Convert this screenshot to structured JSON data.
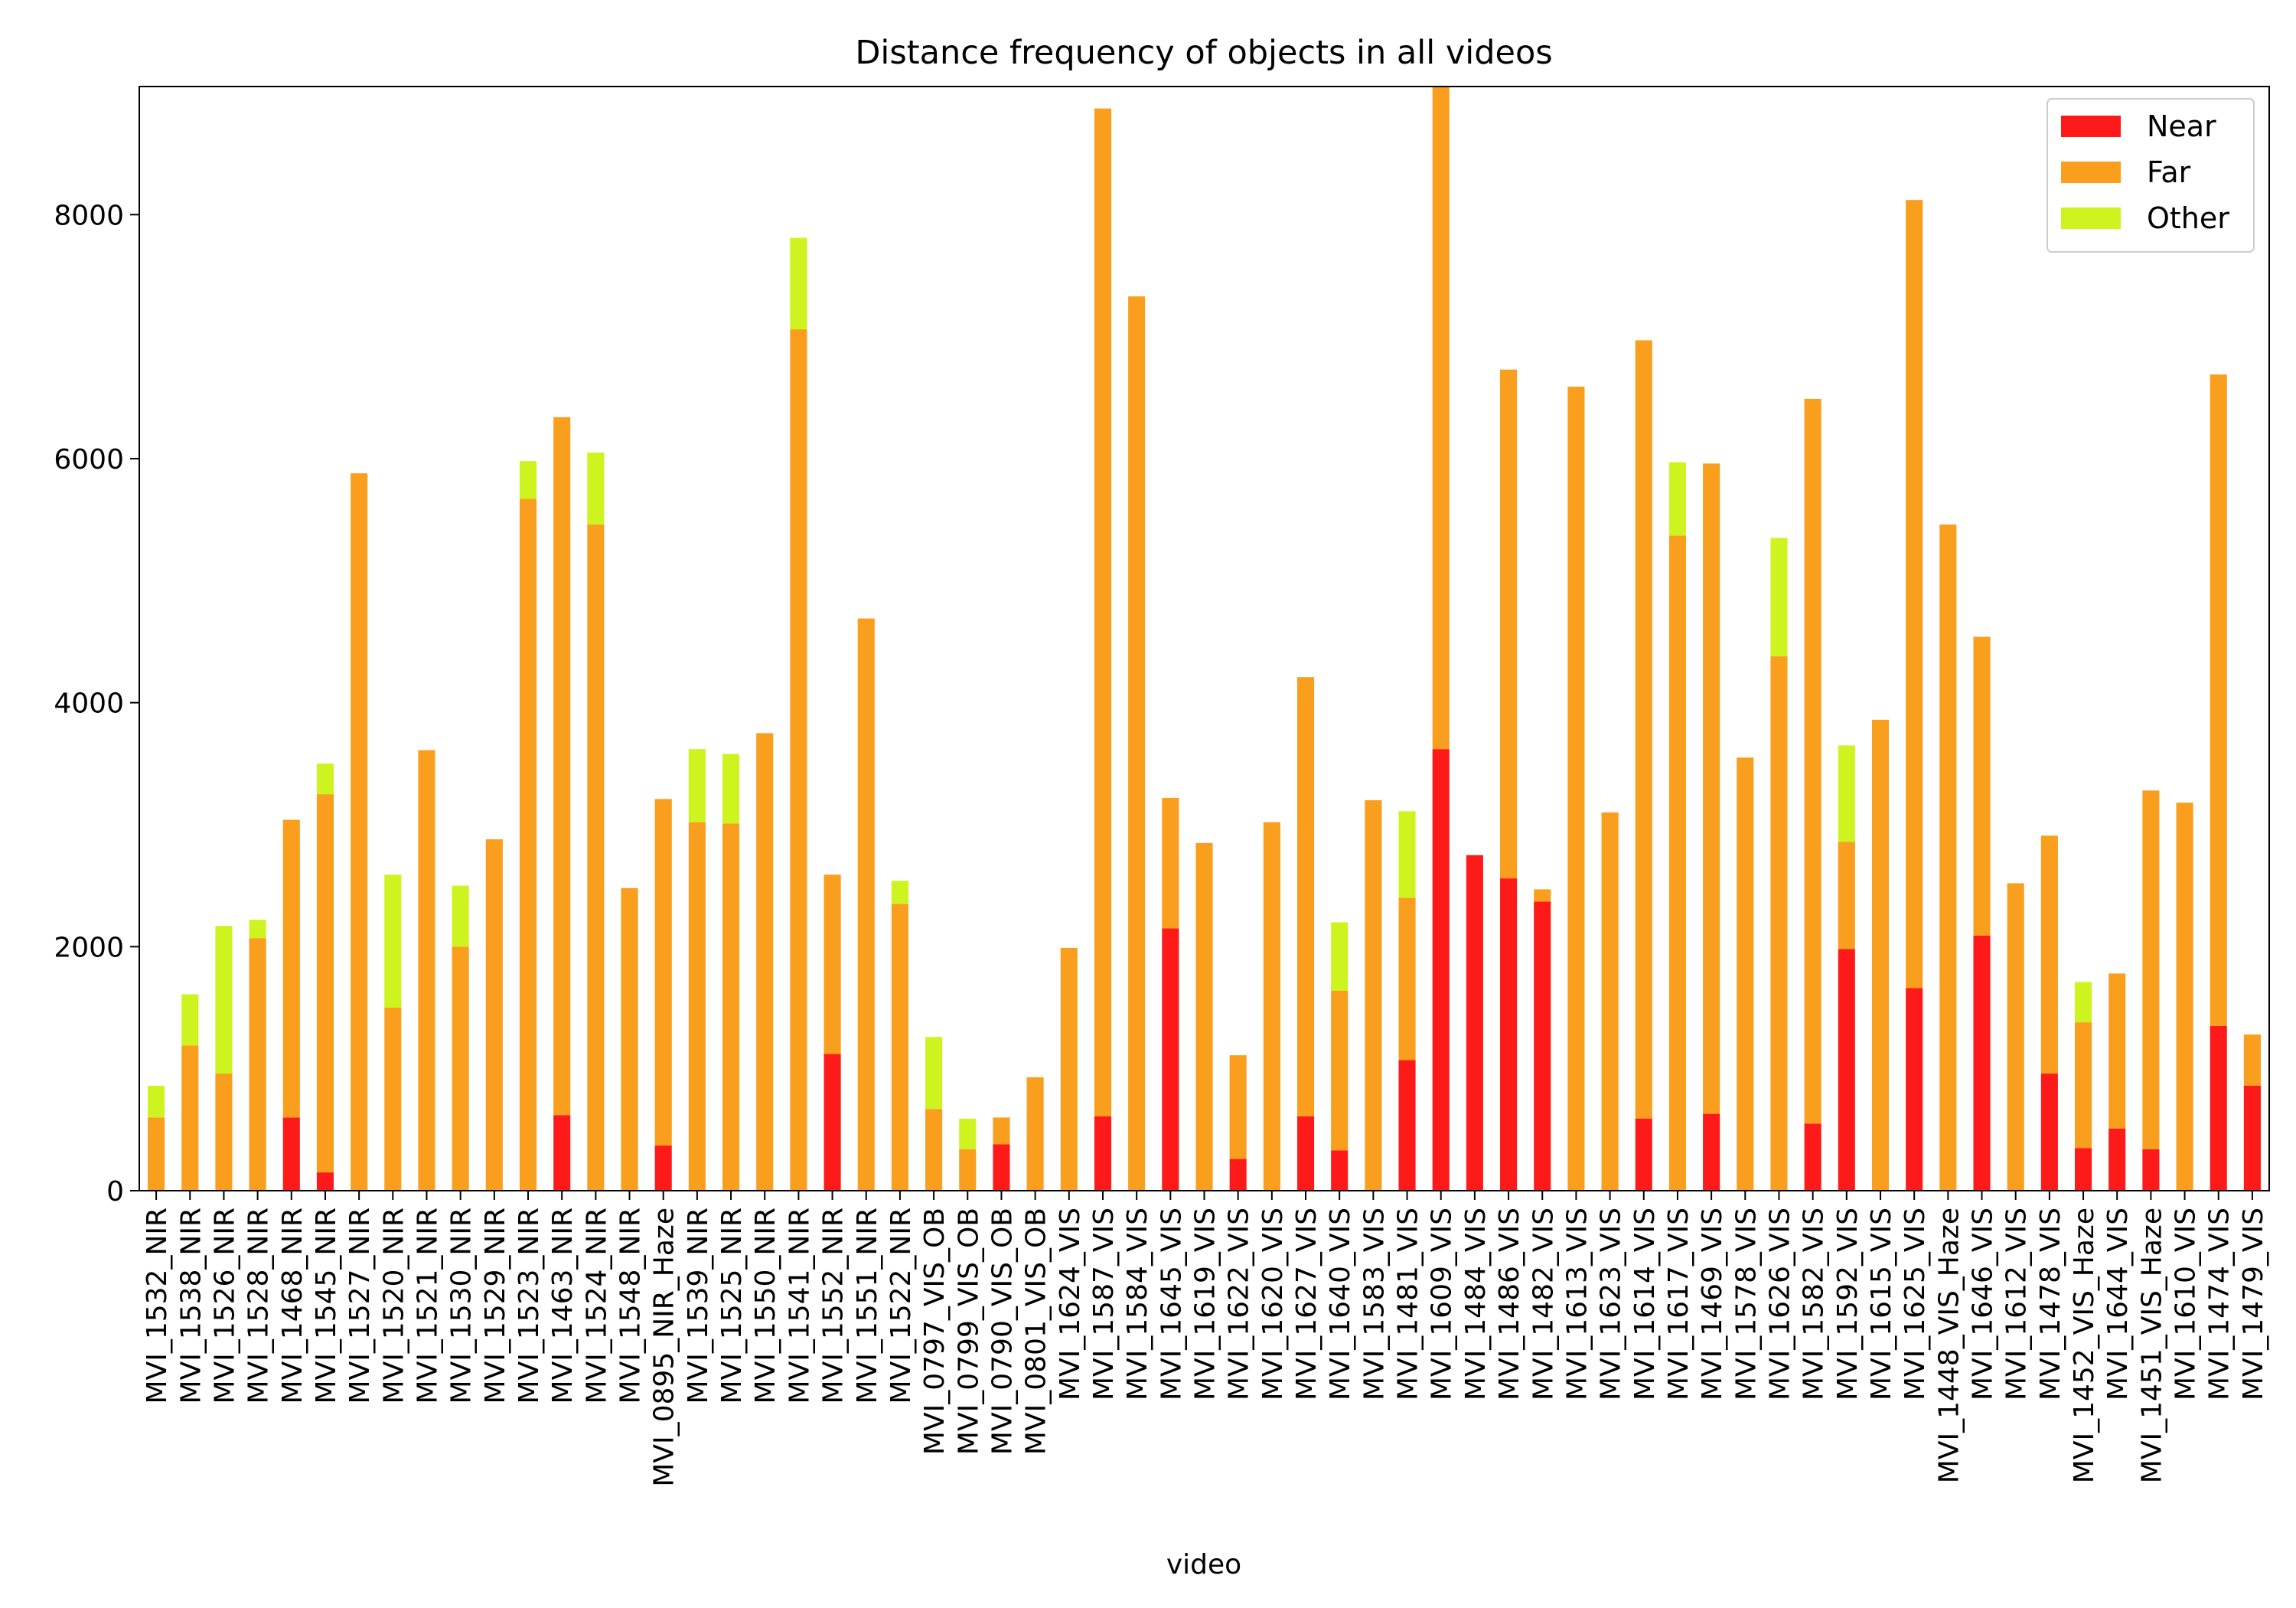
{
  "chart_data": {
    "type": "bar",
    "stacked": true,
    "title": "Distance frequency of objects in all videos",
    "xlabel": "video",
    "ylabel": "",
    "ylim": [
      0,
      9050
    ],
    "yticks": [
      0,
      2000,
      4000,
      6000,
      8000
    ],
    "grid": false,
    "legend_position": "top-right",
    "categories": [
      "MVI_1532_NIR",
      "MVI_1538_NIR",
      "MVI_1526_NIR",
      "MVI_1528_NIR",
      "MVI_1468_NIR",
      "MVI_1545_NIR",
      "MVI_1527_NIR",
      "MVI_1520_NIR",
      "MVI_1521_NIR",
      "MVI_1530_NIR",
      "MVI_1529_NIR",
      "MVI_1523_NIR",
      "MVI_1463_NIR",
      "MVI_1524_NIR",
      "MVI_1548_NIR",
      "MVI_0895_NIR_Haze",
      "MVI_1539_NIR",
      "MVI_1525_NIR",
      "MVI_1550_NIR",
      "MVI_1541_NIR",
      "MVI_1552_NIR",
      "MVI_1551_NIR",
      "MVI_1522_NIR",
      "MVI_0797_VIS_OB",
      "MVI_0799_VIS_OB",
      "MVI_0790_VIS_OB",
      "MVI_0801_VIS_OB",
      "MVI_1624_VIS",
      "MVI_1587_VIS",
      "MVI_1584_VIS",
      "MVI_1645_VIS",
      "MVI_1619_VIS",
      "MVI_1622_VIS",
      "MVI_1620_VIS",
      "MVI_1627_VIS",
      "MVI_1640_VIS",
      "MVI_1583_VIS",
      "MVI_1481_VIS",
      "MVI_1609_VIS",
      "MVI_1484_VIS",
      "MVI_1486_VIS",
      "MVI_1482_VIS",
      "MVI_1613_VIS",
      "MVI_1623_VIS",
      "MVI_1614_VIS",
      "MVI_1617_VIS",
      "MVI_1469_VIS",
      "MVI_1578_VIS",
      "MVI_1626_VIS",
      "MVI_1582_VIS",
      "MVI_1592_VIS",
      "MVI_1615_VIS",
      "MVI_1625_VIS",
      "MVI_1448_VIS_Haze",
      "MVI_1646_VIS",
      "MVI_1612_VIS",
      "MVI_1478_VIS",
      "MVI_1452_VIS_Haze",
      "MVI_1644_VIS",
      "MVI_1451_VIS_Haze",
      "MVI_1610_VIS",
      "MVI_1474_VIS",
      "MVI_1479_VIS"
    ],
    "series": [
      {
        "name": "Near",
        "color": "#ff1a1a",
        "values": [
          0,
          0,
          0,
          0,
          600,
          150,
          0,
          0,
          0,
          0,
          0,
          0,
          620,
          0,
          0,
          370,
          0,
          0,
          0,
          0,
          1120,
          0,
          0,
          0,
          0,
          380,
          0,
          0,
          610,
          0,
          2150,
          0,
          260,
          0,
          610,
          330,
          0,
          1070,
          3620,
          2750,
          2560,
          2370,
          0,
          0,
          590,
          0,
          630,
          0,
          0,
          550,
          1980,
          0,
          1660,
          0,
          2090,
          0,
          960,
          350,
          510,
          340,
          0,
          1350,
          860
        ]
      },
      {
        "name": "Far",
        "color": "#fa9e1e",
        "values": [
          600,
          1190,
          960,
          2070,
          2440,
          3100,
          5880,
          1500,
          3610,
          2000,
          2880,
          5670,
          5720,
          5460,
          2480,
          2840,
          3020,
          3010,
          3750,
          7060,
          1470,
          4690,
          2350,
          670,
          340,
          220,
          930,
          1990,
          8260,
          7330,
          1070,
          2850,
          850,
          3020,
          3600,
          1310,
          3200,
          1330,
          5430,
          0,
          4170,
          100,
          6590,
          3100,
          6380,
          5370,
          5330,
          3550,
          4380,
          5940,
          880,
          3860,
          6460,
          5460,
          2450,
          2520,
          1950,
          1030,
          1270,
          2940,
          3180,
          5340,
          420
        ]
      },
      {
        "name": "Other",
        "color": "#cdf41e",
        "values": [
          260,
          420,
          1210,
          150,
          0,
          250,
          0,
          1090,
          0,
          500,
          0,
          310,
          0,
          590,
          0,
          0,
          600,
          570,
          0,
          750,
          0,
          0,
          190,
          590,
          250,
          0,
          0,
          0,
          0,
          0,
          0,
          0,
          0,
          0,
          0,
          560,
          0,
          710,
          0,
          0,
          0,
          0,
          0,
          0,
          0,
          600,
          0,
          0,
          970,
          0,
          790,
          0,
          0,
          0,
          0,
          0,
          0,
          330,
          0,
          0,
          0,
          0,
          0
        ]
      }
    ]
  }
}
